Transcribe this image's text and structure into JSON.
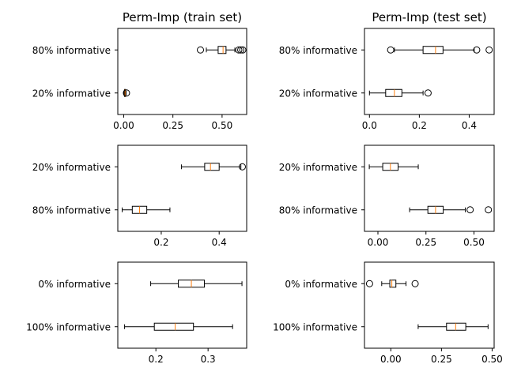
{
  "chart_data": [
    {
      "type": "boxplot",
      "title": "Perm-Imp (train set)",
      "xlim": [
        -0.03,
        0.625
      ],
      "xticks": [
        0.0,
        0.25,
        0.5
      ],
      "xtick_labels": [
        "0.00",
        "0.25",
        "0.50"
      ],
      "categories": [
        "80% informative",
        "20% informative"
      ],
      "boxes": [
        {
          "label": "80% informative",
          "whislo": 0.42,
          "q1": 0.48,
          "med": 0.505,
          "q3": 0.52,
          "whishi": 0.565,
          "fliers": [
            0.39,
            0.585,
            0.595,
            0.605
          ]
        },
        {
          "label": "20% informative",
          "whislo": 0.0,
          "q1": 0.004,
          "med": 0.007,
          "q3": 0.009,
          "whishi": 0.012,
          "fliers": [
            0.014
          ]
        }
      ]
    },
    {
      "type": "boxplot",
      "title": "Perm-Imp (test set)",
      "xlim": [
        -0.02,
        0.5
      ],
      "xticks": [
        0.0,
        0.2,
        0.4
      ],
      "xtick_labels": [
        "0.0",
        "0.2",
        "0.4"
      ],
      "categories": [
        "80% informative",
        "20% informative"
      ],
      "boxes": [
        {
          "label": "80% informative",
          "whislo": 0.1,
          "q1": 0.215,
          "med": 0.265,
          "q3": 0.295,
          "whishi": 0.42,
          "fliers": [
            0.085,
            0.43,
            0.48
          ]
        },
        {
          "label": "20% informative",
          "whislo": 0.0,
          "q1": 0.065,
          "med": 0.1,
          "q3": 0.13,
          "whishi": 0.215,
          "fliers": [
            0.235
          ]
        }
      ]
    },
    {
      "type": "boxplot",
      "title": "",
      "xlim": [
        0.05,
        0.495
      ],
      "xticks": [
        0.2,
        0.4
      ],
      "xtick_labels": [
        "0.2",
        "0.4"
      ],
      "categories": [
        "20% informative",
        "80% informative"
      ],
      "boxes": [
        {
          "label": "20% informative",
          "whislo": 0.27,
          "q1": 0.35,
          "med": 0.37,
          "q3": 0.4,
          "whishi": 0.475,
          "fliers": [
            0.48
          ]
        },
        {
          "label": "80% informative",
          "whislo": 0.065,
          "q1": 0.1,
          "med": 0.125,
          "q3": 0.15,
          "whishi": 0.23,
          "fliers": []
        }
      ]
    },
    {
      "type": "boxplot",
      "title": "",
      "xlim": [
        -0.07,
        0.605
      ],
      "xticks": [
        0.0,
        0.25,
        0.5
      ],
      "xtick_labels": [
        "0.00",
        "0.25",
        "0.50"
      ],
      "categories": [
        "20% informative",
        "80% informative"
      ],
      "boxes": [
        {
          "label": "20% informative",
          "whislo": -0.045,
          "q1": 0.025,
          "med": 0.065,
          "q3": 0.105,
          "whishi": 0.21,
          "fliers": []
        },
        {
          "label": "80% informative",
          "whislo": 0.165,
          "q1": 0.26,
          "med": 0.3,
          "q3": 0.34,
          "whishi": 0.455,
          "fliers": [
            0.48,
            0.575
          ]
        }
      ]
    },
    {
      "type": "boxplot",
      "title": "",
      "xlim": [
        0.127,
        0.374
      ],
      "xticks": [
        0.2,
        0.3
      ],
      "xtick_labels": [
        "0.2",
        "0.3"
      ],
      "categories": [
        "0% informative",
        "100% informative"
      ],
      "boxes": [
        {
          "label": "0% informative",
          "whislo": 0.19,
          "q1": 0.243,
          "med": 0.268,
          "q3": 0.293,
          "whishi": 0.365,
          "fliers": []
        },
        {
          "label": "100% informative",
          "whislo": 0.14,
          "q1": 0.197,
          "med": 0.237,
          "q3": 0.272,
          "whishi": 0.347,
          "fliers": []
        }
      ]
    },
    {
      "type": "boxplot",
      "title": "",
      "xlim": [
        -0.13,
        0.51
      ],
      "xticks": [
        0.0,
        0.25,
        0.5
      ],
      "xtick_labels": [
        "0.00",
        "0.25",
        "0.50"
      ],
      "categories": [
        "0% informative",
        "100% informative"
      ],
      "boxes": [
        {
          "label": "0% informative",
          "whislo": -0.045,
          "q1": -0.005,
          "med": 0.005,
          "q3": 0.025,
          "whishi": 0.075,
          "fliers": [
            -0.105,
            0.12
          ]
        },
        {
          "label": "100% informative",
          "whislo": 0.135,
          "q1": 0.275,
          "med": 0.32,
          "q3": 0.37,
          "whishi": 0.48,
          "fliers": []
        }
      ]
    }
  ]
}
